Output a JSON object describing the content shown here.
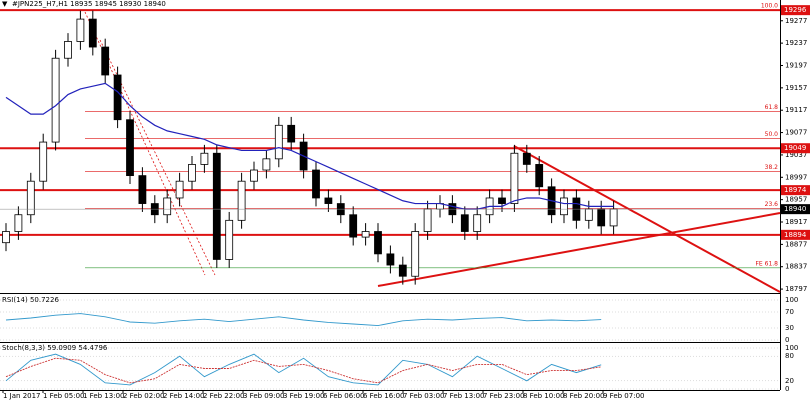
{
  "chart_data": [
    {
      "type": "candlestick",
      "title": "#JPN225_H7,H1 18935 18945 18930 18940",
      "open": [
        18880,
        18900,
        18930,
        18990,
        19060,
        19210,
        19240,
        19280,
        19230,
        19180,
        19100,
        19000,
        18950,
        18930,
        18960,
        18990,
        19020,
        19040,
        18850,
        18920,
        18990,
        19010,
        19030,
        19090,
        19060,
        19010,
        18960,
        18950,
        18930,
        18890,
        18900,
        18860,
        18840,
        18820,
        18900,
        18940,
        18950,
        18930,
        18900,
        18930,
        18960,
        18950,
        19040,
        19020,
        18980,
        18930,
        18960,
        18920,
        18940,
        18910
      ],
      "high": [
        18915,
        18945,
        19005,
        19075,
        19225,
        19255,
        19295,
        19295,
        19245,
        19195,
        19115,
        19015,
        18965,
        18975,
        19005,
        19035,
        19055,
        19055,
        18935,
        19005,
        19025,
        19045,
        19105,
        19105,
        19075,
        19025,
        18975,
        18965,
        18945,
        18915,
        18915,
        18875,
        18855,
        18915,
        18955,
        18965,
        18965,
        18945,
        18945,
        18975,
        18975,
        19055,
        19055,
        19035,
        18995,
        18975,
        18975,
        18955,
        18955,
        18955
      ],
      "low": [
        18865,
        18885,
        18915,
        18975,
        19045,
        19195,
        19225,
        19215,
        19165,
        19085,
        18985,
        18935,
        18915,
        18915,
        18945,
        18975,
        19005,
        18835,
        18835,
        18905,
        18975,
        18995,
        19015,
        19045,
        18995,
        18945,
        18935,
        18915,
        18875,
        18875,
        18845,
        18825,
        18805,
        18805,
        18885,
        18925,
        18915,
        18885,
        18885,
        18915,
        18935,
        18935,
        19005,
        18965,
        18915,
        18915,
        18905,
        18905,
        18895,
        18895
      ],
      "close": [
        18900,
        18930,
        18990,
        19060,
        19210,
        19240,
        19280,
        19230,
        19180,
        19100,
        19000,
        18950,
        18930,
        18960,
        18990,
        19020,
        19040,
        18850,
        18920,
        18990,
        19010,
        19030,
        19090,
        19060,
        19010,
        18960,
        18950,
        18930,
        18890,
        18900,
        18860,
        18840,
        18820,
        18900,
        18940,
        18950,
        18930,
        18900,
        18930,
        18960,
        18950,
        19040,
        19020,
        18980,
        18930,
        18960,
        18920,
        18940,
        18910,
        18940
      ],
      "ma": {
        "color": "#2222bb",
        "values": [
          19140,
          19125,
          19110,
          19110,
          19125,
          19145,
          19155,
          19160,
          19165,
          19150,
          19125,
          19105,
          19090,
          19080,
          19075,
          19070,
          19065,
          19055,
          19050,
          19045,
          19045,
          19045,
          19050,
          19045,
          19035,
          19025,
          19015,
          19005,
          18995,
          18985,
          18975,
          18965,
          18955,
          18950,
          18950,
          18950,
          18945,
          18940,
          18940,
          18945,
          18945,
          18955,
          18960,
          18960,
          18955,
          18950,
          18950,
          18945,
          18945,
          18945
        ]
      },
      "ylim": [
        18790,
        19307
      ],
      "yticks": [
        19277,
        19237,
        19197,
        19157,
        19117,
        19077,
        19037,
        18997,
        18957,
        18917,
        18877,
        18837,
        18797
      ],
      "levels": [
        19296,
        19049,
        18974,
        18894
      ],
      "level_color": "#dd1111",
      "current_price": 18940,
      "fib_levels": [
        {
          "value": 19296,
          "label": "100.0"
        },
        {
          "value": 19115,
          "label": "61.8"
        },
        {
          "value": 19066,
          "label": "50.0"
        },
        {
          "value": 19007,
          "label": "38.2"
        },
        {
          "value": 18941,
          "label": "23.6"
        },
        {
          "value": 18835,
          "label": "FE 61.8"
        }
      ],
      "x_labels": [
        "1 Jan 2017",
        "1 Feb 05:00",
        "1 Feb 13:00",
        "2 Feb 02:00",
        "2 Feb 14:00",
        "2 Feb 22:00",
        "3 Feb 09:00",
        "3 Feb 19:00",
        "6 Feb 06:00",
        "6 Feb 16:00",
        "7 Feb 03:00",
        "7 Feb 13:00",
        "7 Feb 23:00",
        "8 Feb 10:00",
        "8 Feb 20:00",
        "9 Feb 07:00"
      ]
    },
    {
      "type": "line",
      "title": "RSI(14) 50.7226",
      "color": "#3399cc",
      "values": [
        50,
        55,
        62,
        66,
        58,
        45,
        42,
        48,
        52,
        46,
        52,
        58,
        50,
        44,
        40,
        36,
        48,
        52,
        50,
        54,
        56,
        48,
        50,
        48,
        51
      ],
      "ylim": [
        0,
        100
      ],
      "yticks": [
        100,
        70,
        30,
        0
      ]
    },
    {
      "type": "line",
      "title": "Stoch(8,3,3) 59.0909 54.4796",
      "lines": [
        {
          "color": "#3399cc",
          "values": [
            20,
            70,
            85,
            60,
            15,
            10,
            40,
            80,
            30,
            60,
            85,
            40,
            75,
            30,
            15,
            10,
            70,
            60,
            30,
            80,
            50,
            20,
            60,
            40,
            59
          ]
        },
        {
          "color": "#cc3333",
          "values": [
            30,
            55,
            75,
            70,
            35,
            15,
            25,
            60,
            50,
            50,
            70,
            55,
            60,
            45,
            25,
            15,
            45,
            60,
            45,
            60,
            60,
            35,
            45,
            45,
            54
          ]
        }
      ],
      "ylim": [
        0,
        100
      ],
      "yticks": [
        100,
        80,
        20,
        0
      ]
    }
  ]
}
